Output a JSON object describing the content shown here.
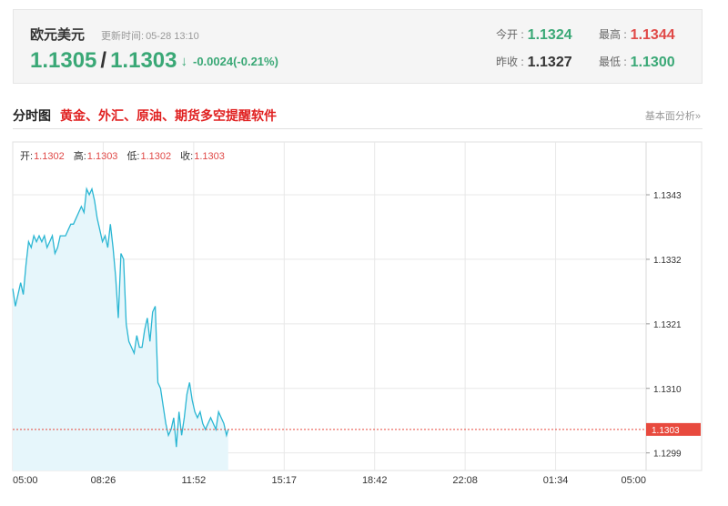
{
  "quote": {
    "name": "欧元美元",
    "update_label": "更新时间:",
    "update_time": "05-28 13:10",
    "bid": "1.1305",
    "separator": "/",
    "ask": "1.1303",
    "arrow": "↓",
    "change": "-0.0024(-0.21%)",
    "open_label": "今开 :",
    "open": "1.1324",
    "high_label": "最高 :",
    "high": "1.1344",
    "prev_close_label": "昨收 :",
    "prev_close": "1.1327",
    "low_label": "最低 :",
    "low": "1.1300"
  },
  "section": {
    "title": "分时图",
    "ad": "黄金、外汇、原油、期货多空提醒软件",
    "link": "基本面分析»"
  },
  "ohlc": {
    "open_label": "开:",
    "open": "1.1302",
    "high_label": "高:",
    "high": "1.1303",
    "low_label": "低:",
    "low": "1.1302",
    "close_label": "收:",
    "close": "1.1303"
  },
  "colors": {
    "line": "#2ab6d3",
    "fill": "#e6f6fb",
    "grid": "#e8e8e8",
    "current": "#e84a3e",
    "green": "#3aa876",
    "red": "#e04a48"
  },
  "chart_data": {
    "type": "area",
    "title": "",
    "xlabel": "",
    "ylabel": "",
    "ylim": [
      1.1296,
      1.1352
    ],
    "x_ticks": [
      "05:00",
      "08:26",
      "11:52",
      "15:17",
      "18:42",
      "22:08",
      "01:34",
      "05:00"
    ],
    "y_ticks": [
      1.1343,
      1.1332,
      1.1321,
      1.131,
      1.1299
    ],
    "current_value": 1.1303,
    "current_label": "1.1303",
    "grid": true,
    "series": [
      {
        "x": [
          "05:00",
          "05:06",
          "05:12",
          "05:18",
          "05:24",
          "05:30",
          "05:36",
          "05:42",
          "05:48",
          "05:54",
          "06:00",
          "06:06",
          "06:12",
          "06:18",
          "06:24",
          "06:30",
          "06:36",
          "06:42",
          "06:48",
          "06:54",
          "07:00",
          "07:06",
          "07:12",
          "07:18",
          "07:24",
          "07:30",
          "07:36",
          "07:42",
          "07:48",
          "07:54",
          "08:00",
          "08:06",
          "08:12",
          "08:18",
          "08:24",
          "08:30",
          "08:36",
          "08:42",
          "08:48",
          "08:54",
          "09:00",
          "09:06",
          "09:12",
          "09:18",
          "09:24",
          "09:30",
          "09:36",
          "09:42",
          "09:48",
          "09:54",
          "10:00",
          "10:06",
          "10:12",
          "10:18",
          "10:24",
          "10:30",
          "10:36",
          "10:42",
          "10:48",
          "10:54",
          "11:00",
          "11:06",
          "11:12",
          "11:18",
          "11:24",
          "11:30",
          "11:36",
          "11:42",
          "11:48",
          "11:54",
          "12:00",
          "12:06",
          "12:12",
          "12:18",
          "12:24",
          "12:30",
          "12:36",
          "12:42",
          "12:48",
          "12:54",
          "13:00",
          "13:06",
          "13:10"
        ],
        "values": [
          1.1327,
          1.1324,
          1.1326,
          1.1328,
          1.1326,
          1.1331,
          1.1335,
          1.1334,
          1.1336,
          1.1335,
          1.1336,
          1.1335,
          1.1336,
          1.1334,
          1.1335,
          1.1336,
          1.1333,
          1.1334,
          1.1336,
          1.1336,
          1.1336,
          1.1337,
          1.1338,
          1.1338,
          1.1339,
          1.134,
          1.1341,
          1.134,
          1.1344,
          1.1343,
          1.1344,
          1.1342,
          1.1339,
          1.1337,
          1.1335,
          1.1336,
          1.1334,
          1.1338,
          1.1334,
          1.1329,
          1.1322,
          1.1333,
          1.1332,
          1.1321,
          1.1318,
          1.1317,
          1.1316,
          1.1319,
          1.1317,
          1.1317,
          1.132,
          1.1322,
          1.1318,
          1.1323,
          1.1324,
          1.1311,
          1.131,
          1.1307,
          1.1304,
          1.1302,
          1.1303,
          1.1305,
          1.13,
          1.1306,
          1.1302,
          1.1305,
          1.1309,
          1.1311,
          1.1308,
          1.1306,
          1.1305,
          1.1306,
          1.1304,
          1.1303,
          1.1304,
          1.1305,
          1.1304,
          1.1303,
          1.1306,
          1.1305,
          1.1304,
          1.1302,
          1.1303
        ]
      }
    ]
  }
}
